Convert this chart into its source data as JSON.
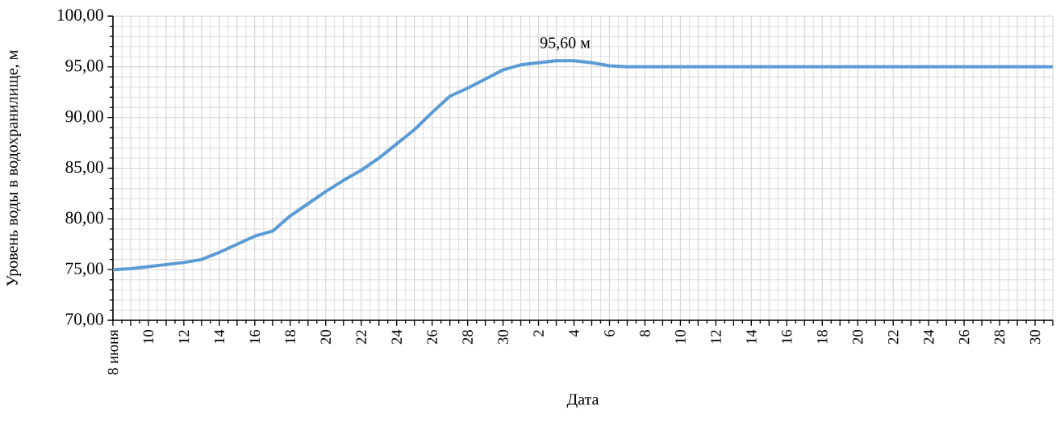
{
  "chart_data": {
    "type": "line",
    "xlabel": "Дата",
    "ylabel": "Уровень воды в  водохранилище, м",
    "categories": [
      "8 июня",
      null,
      "10",
      null,
      "12",
      null,
      "14",
      null,
      "16",
      null,
      "18",
      null,
      "20",
      null,
      "22",
      null,
      "24",
      null,
      "26",
      null,
      "28",
      null,
      "30",
      null,
      "2",
      null,
      "4",
      null,
      "6",
      null,
      "8",
      null,
      "10",
      null,
      "12",
      null,
      "14",
      null,
      "16",
      null,
      "18",
      null,
      "20",
      null,
      "22",
      null,
      "24",
      null,
      "26",
      null,
      "28",
      null,
      "30",
      null
    ],
    "series": [
      {
        "color": "#5b9bd5",
        "values": [
          75.0,
          75.1,
          75.3,
          75.5,
          75.7,
          76.0,
          76.7,
          77.5,
          78.3,
          78.8,
          80.3,
          81.5,
          82.7,
          83.8,
          84.8,
          86.0,
          87.4,
          88.8,
          90.5,
          92.1,
          92.9,
          93.8,
          94.7,
          95.2,
          95.4,
          95.6,
          95.6,
          95.4,
          95.1,
          95.0,
          95.0,
          95.0,
          95.0,
          95.0,
          95.0,
          95.0,
          95.0,
          95.0,
          95.0,
          95.0,
          95.0,
          95.0,
          95.0,
          95.0,
          95.0,
          95.0,
          95.0,
          95.0,
          95.0,
          95.0,
          95.0,
          95.0,
          95.0,
          95.0
        ]
      }
    ],
    "ylim": [
      70,
      100
    ],
    "yticks": [
      {
        "value": 70,
        "label": "70,00"
      },
      {
        "value": 75,
        "label": "75,00"
      },
      {
        "value": 80,
        "label": "80,00"
      },
      {
        "value": 85,
        "label": "85,00"
      },
      {
        "value": 90,
        "label": "90,00"
      },
      {
        "value": 95,
        "label": "95,00"
      },
      {
        "value": 100,
        "label": "100,00"
      }
    ],
    "grid": true,
    "legend": false,
    "marker": "none",
    "line_style": "solid",
    "annotations": [
      "95,60 м"
    ]
  }
}
